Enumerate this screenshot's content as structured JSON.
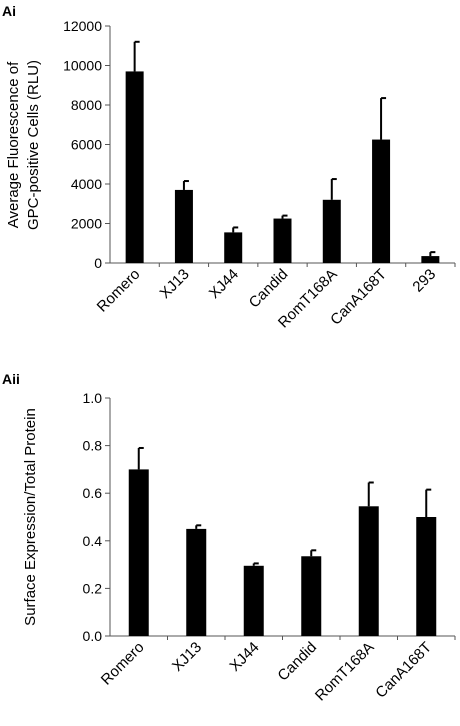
{
  "chart_data": [
    {
      "panel": "Ai",
      "type": "bar",
      "ylabel_lines": [
        "Average Fluorescence of",
        "GPC-positive Cells (RLU)"
      ],
      "xlabel": "",
      "categories": [
        "Romero",
        "XJ13",
        "XJ44",
        "Candid",
        "RomT168A",
        "CanA168T",
        "293"
      ],
      "values": [
        9700,
        3700,
        1550,
        2250,
        3200,
        6250,
        350
      ],
      "errors": [
        1500,
        450,
        250,
        150,
        1050,
        2100,
        200
      ],
      "ylim": [
        0,
        12000
      ],
      "yticks": [
        0,
        2000,
        4000,
        6000,
        8000,
        10000,
        12000
      ],
      "ytick_labels": [
        "0",
        "2000",
        "4000",
        "6000",
        "8000",
        "10000",
        "12000"
      ],
      "bar_color": "#000000",
      "grid": false
    },
    {
      "panel": "Aii",
      "type": "bar",
      "ylabel_lines": [
        "Surface Expression/Total Protein"
      ],
      "xlabel": "",
      "categories": [
        "Romero",
        "XJ13",
        "XJ44",
        "Candid",
        "RomT168A",
        "CanA168T"
      ],
      "values": [
        0.7,
        0.45,
        0.295,
        0.335,
        0.545,
        0.5
      ],
      "errors": [
        0.09,
        0.015,
        0.01,
        0.025,
        0.1,
        0.115
      ],
      "ylim": [
        0,
        1.0
      ],
      "yticks": [
        0,
        0.2,
        0.4,
        0.6,
        0.8,
        1.0
      ],
      "ytick_labels": [
        "0.0",
        "0.2",
        "0.4",
        "0.6",
        "0.8",
        "1.0"
      ],
      "bar_color": "#000000",
      "grid": false
    }
  ]
}
